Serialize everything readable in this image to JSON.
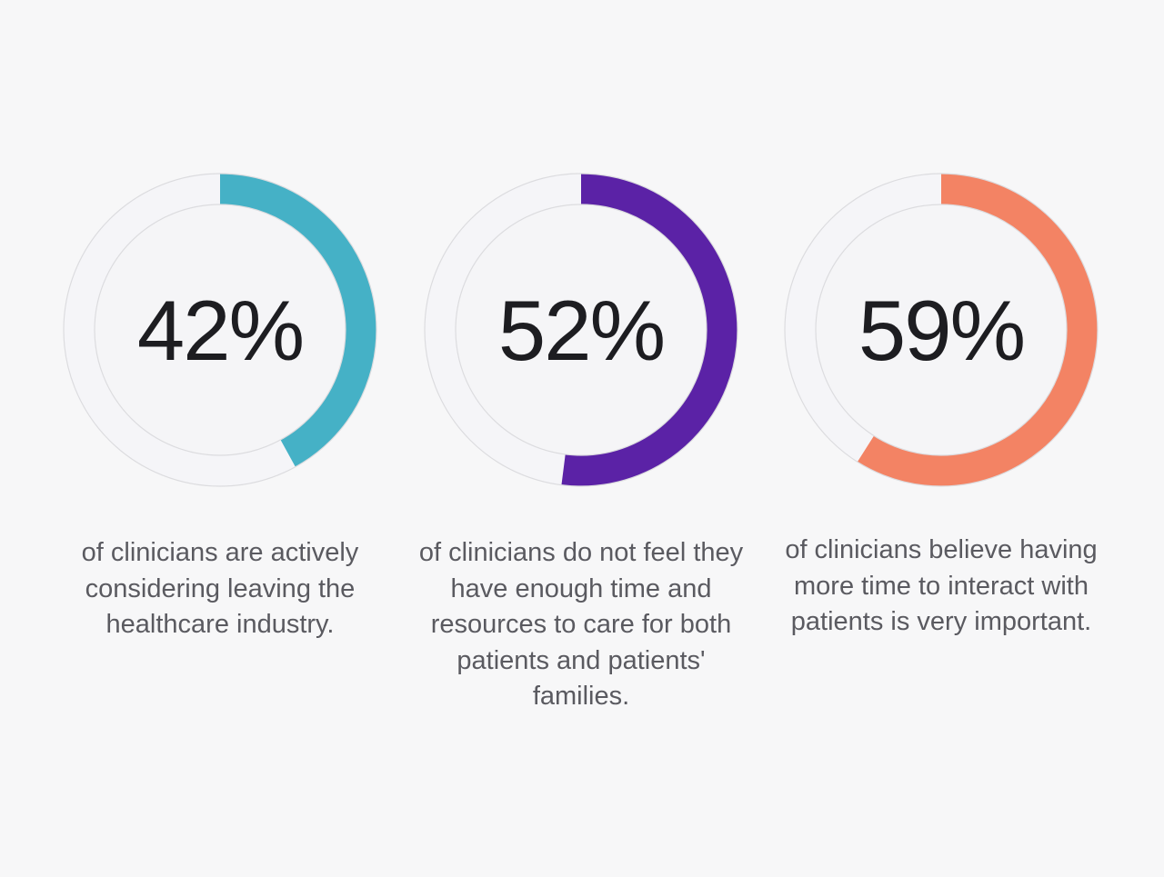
{
  "chart_data": [
    {
      "type": "pie",
      "value": 42,
      "label": "42%",
      "caption": "of clinicians are actively considering leaving the healthcare industry.",
      "color": "#45b1c6",
      "track_color": "#f5f5f8"
    },
    {
      "type": "pie",
      "value": 52,
      "label": "52%",
      "caption": "of clinicians do not feel they have enough time and resources to care for both patients and patients' families.",
      "color": "#5b22a6",
      "track_color": "#f5f5f8"
    },
    {
      "type": "pie",
      "value": 59,
      "label": "59%",
      "caption": "of clinicians believe having more time to interact with patients is very important.",
      "color": "#f38364",
      "track_color": "#f5f5f8"
    }
  ]
}
